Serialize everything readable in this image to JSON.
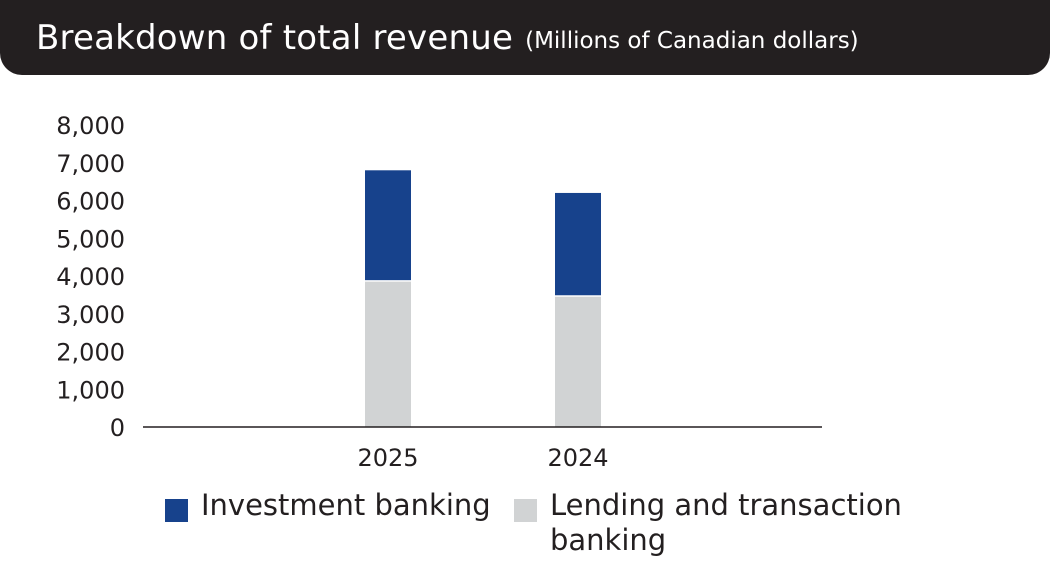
{
  "title": {
    "main": "Breakdown of total revenue",
    "subtitle": "(Millions of Canadian dollars)"
  },
  "colors": {
    "header_bg": "#231f20",
    "investment_banking": "#17428c",
    "lending": "#d1d3d4",
    "text": "#231f20"
  },
  "chart_data": {
    "type": "bar",
    "stacked": true,
    "title": "Breakdown of total revenue (Millions of Canadian dollars)",
    "xlabel": "",
    "ylabel": "",
    "categories": [
      "2025",
      "2024"
    ],
    "series": [
      {
        "name": "Lending and transaction banking",
        "values": [
          3850,
          3450
        ],
        "color": "#d1d3d4"
      },
      {
        "name": "Investment banking",
        "values": [
          2950,
          2750
        ],
        "color": "#17428c"
      }
    ],
    "ylim": [
      0,
      8000
    ],
    "yticks": [
      0,
      1000,
      2000,
      3000,
      4000,
      5000,
      6000,
      7000,
      8000
    ],
    "ytick_labels": [
      "0",
      "1,000",
      "2,000",
      "3,000",
      "4,000",
      "5,000",
      "6,000",
      "7,000",
      "8,000"
    ],
    "grid": false,
    "legend_position": "bottom"
  },
  "legend": {
    "investment_banking": "Investment banking",
    "lending_line1": "Lending and transaction",
    "lending_line2": "banking"
  }
}
